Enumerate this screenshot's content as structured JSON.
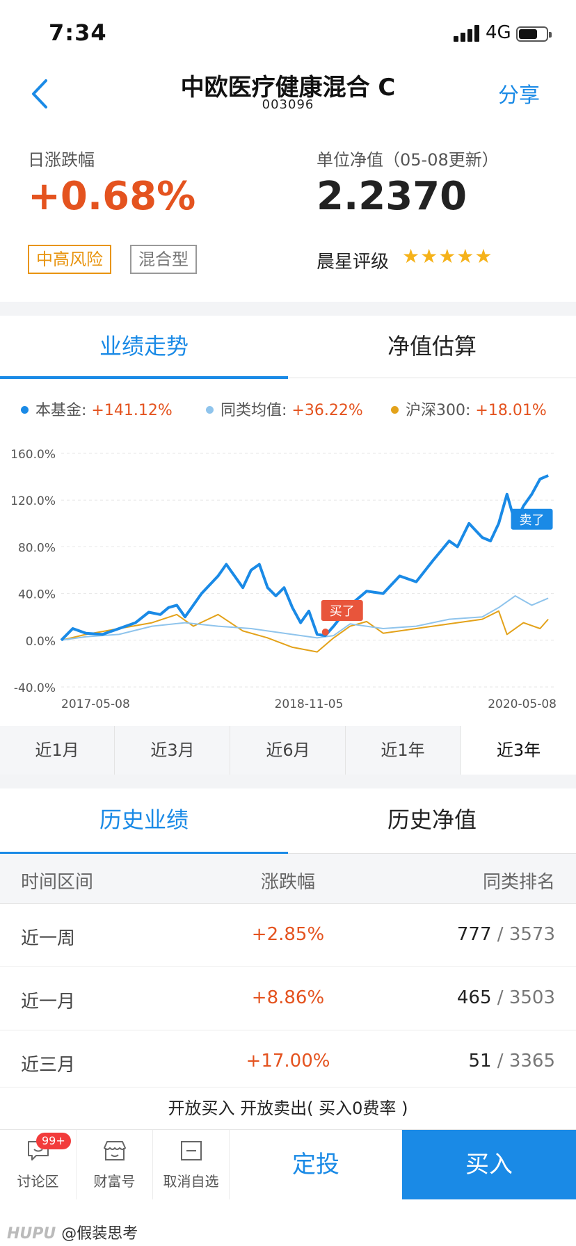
{
  "status_bar": {
    "time": "7:34",
    "network": "4G"
  },
  "nav": {
    "title": "中欧医疗健康混合 C",
    "code": "003096",
    "share": "分享"
  },
  "summary": {
    "change_label": "日涨跌幅",
    "change_value": "+0.68%",
    "nav_label": "单位净值（05-08更新）",
    "nav_value": "2.2370",
    "tags": [
      "中高风险",
      "混合型"
    ],
    "rating_label": "晨星评级",
    "rating_stars": 5
  },
  "chart_tabs": [
    "业绩走势",
    "净值估算"
  ],
  "legend": [
    {
      "name": "本基金:",
      "value": "+141.12%",
      "color": "#1a8ae6"
    },
    {
      "name": "同类均值:",
      "value": "+36.22%",
      "color": "#8fc4ec"
    },
    {
      "name": "沪深300:",
      "value": "+18.01%",
      "color": "#e3a21a"
    }
  ],
  "chart_data": {
    "type": "line",
    "y_ticks": [
      "160.0%",
      "120.0%",
      "80.0%",
      "40.0%",
      "0.0%",
      "-40.0%"
    ],
    "ylim": [
      -40,
      160
    ],
    "x_tick_labels": [
      "2017-05-08",
      "2018-11-05",
      "2020-05-08"
    ],
    "x_range_years": [
      2017.35,
      2020.35
    ],
    "markers": [
      {
        "label": "买了",
        "x": 2018.95,
        "y": 7
      },
      {
        "label": "卖了",
        "x": 2020.15,
        "y": 103
      }
    ],
    "series": [
      {
        "name": "本基金",
        "color": "#1a8ae6",
        "points": [
          [
            2017.35,
            0
          ],
          [
            2017.42,
            10
          ],
          [
            2017.5,
            6
          ],
          [
            2017.6,
            5
          ],
          [
            2017.7,
            10
          ],
          [
            2017.8,
            15
          ],
          [
            2017.88,
            24
          ],
          [
            2017.95,
            22
          ],
          [
            2018.0,
            28
          ],
          [
            2018.05,
            30
          ],
          [
            2018.1,
            20
          ],
          [
            2018.15,
            30
          ],
          [
            2018.2,
            40
          ],
          [
            2018.3,
            55
          ],
          [
            2018.35,
            65
          ],
          [
            2018.4,
            55
          ],
          [
            2018.45,
            45
          ],
          [
            2018.5,
            60
          ],
          [
            2018.55,
            65
          ],
          [
            2018.6,
            45
          ],
          [
            2018.65,
            38
          ],
          [
            2018.7,
            45
          ],
          [
            2018.75,
            28
          ],
          [
            2018.8,
            15
          ],
          [
            2018.85,
            25
          ],
          [
            2018.9,
            5
          ],
          [
            2018.95,
            4
          ],
          [
            2019.0,
            12
          ],
          [
            2019.1,
            30
          ],
          [
            2019.2,
            42
          ],
          [
            2019.3,
            40
          ],
          [
            2019.4,
            55
          ],
          [
            2019.5,
            50
          ],
          [
            2019.6,
            68
          ],
          [
            2019.7,
            85
          ],
          [
            2019.75,
            80
          ],
          [
            2019.82,
            100
          ],
          [
            2019.9,
            88
          ],
          [
            2019.95,
            85
          ],
          [
            2020.0,
            100
          ],
          [
            2020.05,
            125
          ],
          [
            2020.1,
            100
          ],
          [
            2020.15,
            115
          ],
          [
            2020.2,
            125
          ],
          [
            2020.25,
            138
          ],
          [
            2020.3,
            141
          ]
        ]
      },
      {
        "name": "同类均值",
        "color": "#8fc4ec",
        "points": [
          [
            2017.35,
            0
          ],
          [
            2017.5,
            3
          ],
          [
            2017.7,
            5
          ],
          [
            2017.9,
            12
          ],
          [
            2018.1,
            15
          ],
          [
            2018.3,
            12
          ],
          [
            2018.5,
            10
          ],
          [
            2018.7,
            6
          ],
          [
            2018.9,
            2
          ],
          [
            2019.0,
            4
          ],
          [
            2019.1,
            14
          ],
          [
            2019.3,
            10
          ],
          [
            2019.5,
            12
          ],
          [
            2019.7,
            18
          ],
          [
            2019.9,
            20
          ],
          [
            2020.0,
            28
          ],
          [
            2020.1,
            38
          ],
          [
            2020.2,
            30
          ],
          [
            2020.3,
            36
          ]
        ]
      },
      {
        "name": "沪深300",
        "color": "#e3a21a",
        "points": [
          [
            2017.35,
            0
          ],
          [
            2017.5,
            5
          ],
          [
            2017.7,
            10
          ],
          [
            2017.9,
            15
          ],
          [
            2018.05,
            22
          ],
          [
            2018.15,
            12
          ],
          [
            2018.3,
            22
          ],
          [
            2018.45,
            8
          ],
          [
            2018.6,
            2
          ],
          [
            2018.75,
            -6
          ],
          [
            2018.9,
            -10
          ],
          [
            2019.0,
            2
          ],
          [
            2019.1,
            12
          ],
          [
            2019.2,
            16
          ],
          [
            2019.3,
            6
          ],
          [
            2019.5,
            10
          ],
          [
            2019.7,
            14
          ],
          [
            2019.9,
            18
          ],
          [
            2020.0,
            25
          ],
          [
            2020.05,
            5
          ],
          [
            2020.15,
            15
          ],
          [
            2020.25,
            10
          ],
          [
            2020.3,
            18
          ]
        ]
      }
    ]
  },
  "periods": [
    "近1月",
    "近3月",
    "近6月",
    "近1年",
    "近3年"
  ],
  "active_period": "近3年",
  "history_tabs": [
    "历史业绩",
    "历史净值"
  ],
  "history": {
    "columns": [
      "时间区间",
      "涨跌幅",
      "同类排名"
    ],
    "rows": [
      {
        "period": "近一周",
        "change": "+2.85%",
        "rank": "777",
        "total": "3573"
      },
      {
        "period": "近一月",
        "change": "+8.86%",
        "rank": "465",
        "total": "3503"
      },
      {
        "period": "近三月",
        "change": "+17.00%",
        "rank": "51",
        "total": "3365"
      }
    ]
  },
  "notice": "开放买入 开放卖出( 买入0费率 )",
  "bottom_bar": {
    "discuss": "讨论区",
    "discuss_badge": "99+",
    "wealth": "财富号",
    "unwatch": "取消自选",
    "sip": "定投",
    "buy": "买入"
  },
  "watermark": {
    "logo": "HUPU",
    "user": "@假装思考"
  }
}
